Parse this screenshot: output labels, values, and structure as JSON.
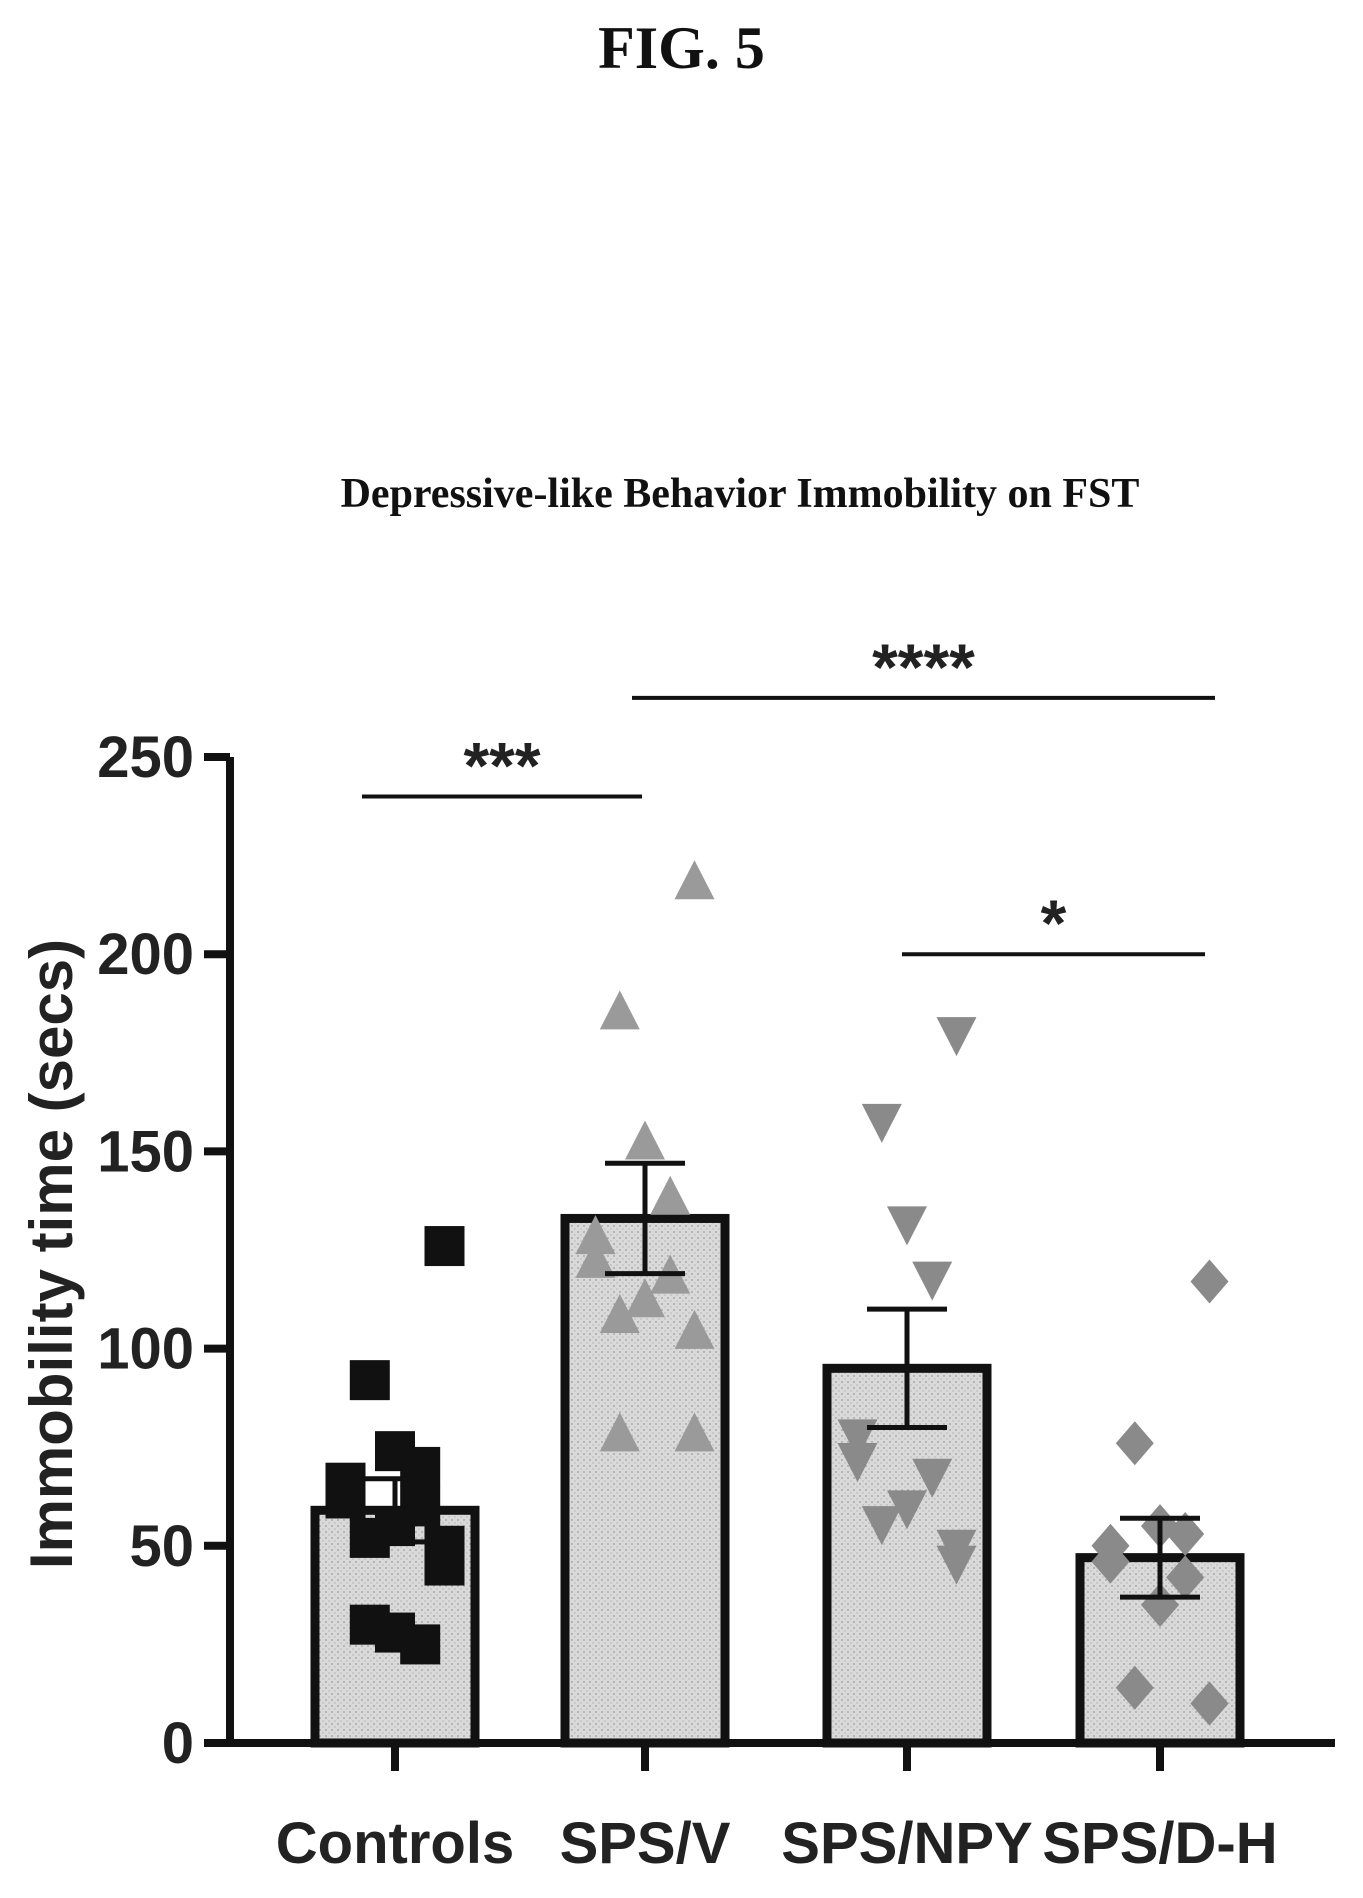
{
  "figure": {
    "label": "FIG. 5"
  },
  "chart_data": {
    "type": "bar",
    "title": "Depressive-like Behavior Immobility on FST",
    "ylabel": "Immobility time (secs)",
    "xlabel": "",
    "ylim": [
      0,
      250
    ],
    "yticks": [
      0,
      50,
      100,
      150,
      200,
      250
    ],
    "categories": [
      "Controls",
      "SPS/V",
      "SPS/NPY",
      "SPS/D-H"
    ],
    "values": [
      59,
      133,
      95,
      47
    ],
    "error": [
      8,
      14,
      15,
      10
    ],
    "points": [
      [
        126,
        92,
        74,
        70,
        66,
        62,
        60,
        55,
        52,
        50,
        45,
        30,
        28,
        25
      ],
      [
        218,
        185,
        152,
        138,
        128,
        122,
        118,
        112,
        108,
        104,
        78,
        78
      ],
      [
        180,
        158,
        132,
        118,
        78,
        72,
        68,
        60,
        56,
        50,
        46
      ],
      [
        117,
        76,
        55,
        53,
        50,
        46,
        42,
        35,
        14,
        10,
        10
      ]
    ],
    "significance": [
      {
        "label": "***",
        "from": 0,
        "to": 1,
        "y": 240
      },
      {
        "label": "****",
        "from": 1,
        "to": 3,
        "y": 265
      },
      {
        "label": "*",
        "from": 2,
        "to": 3,
        "y": 200
      }
    ],
    "markers": [
      "square",
      "triangle-up",
      "triangle-down",
      "diamond"
    ],
    "marker_colors": [
      "#111111",
      "#9a9a9a",
      "#8a8a8a",
      "#8a8a8a"
    ],
    "bar_fill": "#d9d9d9",
    "bar_stroke": "#111111"
  }
}
